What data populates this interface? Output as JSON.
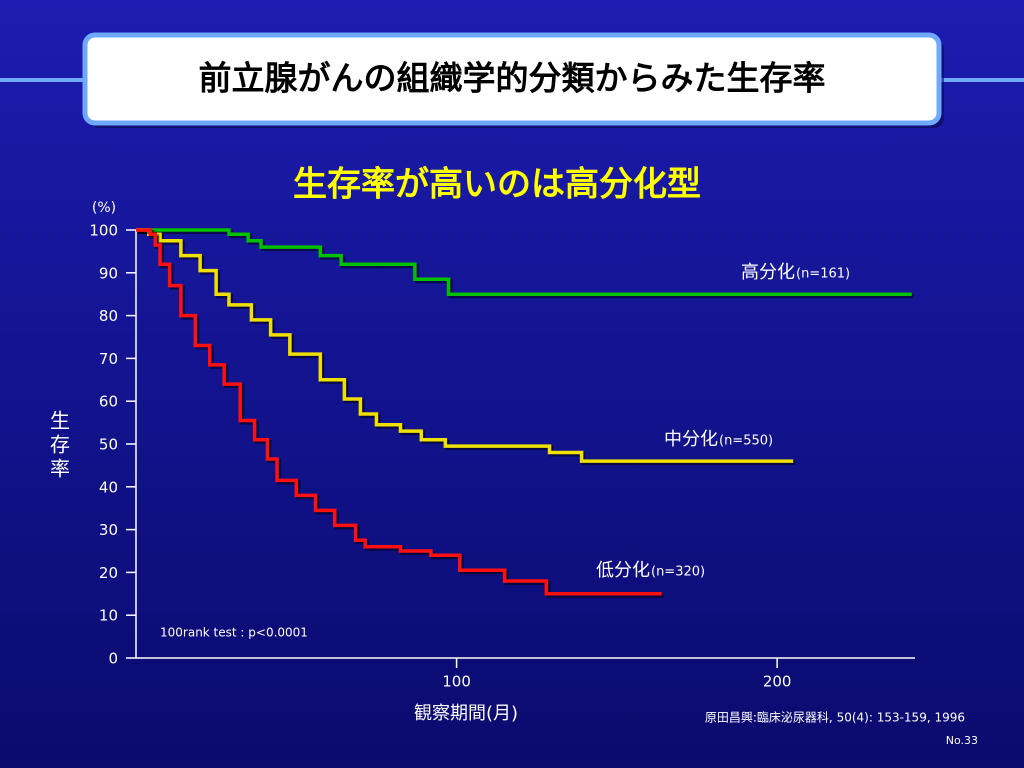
{
  "chart_data": {
    "type": "line",
    "step": "post",
    "title": "前立腺がんの組織学的分類からみた生存率",
    "subtitle": "生存率が高いのは高分化型",
    "y_unit": "(%)",
    "ylabel": "生存率",
    "xlabel": "観察期間(月)",
    "xlim": [
      0,
      243
    ],
    "ylim": [
      0,
      100
    ],
    "xticks": [
      100,
      200
    ],
    "yticks": [
      0,
      10,
      20,
      30,
      40,
      50,
      60,
      70,
      80,
      90,
      100
    ],
    "annotation": "100rank test : p<0.0001",
    "source": "原田昌興:臨床泌尿器科, 50(4): 153-159, 1996",
    "page_number": "No.33",
    "series": [
      {
        "name": "高分化",
        "n_label": "(n=161)",
        "color": "#00c000",
        "x": [
          0,
          29,
          35,
          39,
          57.5,
          64,
          87,
          97.5,
          242
        ],
        "values": [
          100,
          99,
          97.5,
          96,
          94,
          92,
          88.5,
          85,
          85
        ]
      },
      {
        "name": "中分化",
        "n_label": "(n=550)",
        "color": "#f0e000",
        "x": [
          0,
          4,
          7.5,
          14,
          20,
          25,
          29,
          36,
          42,
          48,
          57.5,
          65,
          70,
          75,
          82.5,
          89,
          96.5,
          129,
          139,
          205
        ],
        "values": [
          100,
          99,
          97.5,
          94,
          90.5,
          85,
          82.5,
          79,
          75.5,
          71,
          65,
          60.5,
          57,
          54.5,
          53,
          51,
          49.5,
          48,
          46,
          46
        ]
      },
      {
        "name": "低分化",
        "n_label": "(n=320)",
        "color": "#ff1010",
        "x": [
          0,
          4.5,
          6,
          7.5,
          10.5,
          14,
          18.5,
          23,
          27.5,
          32.5,
          37,
          41,
          44,
          50,
          56,
          62,
          68.5,
          71.5,
          82.5,
          92,
          101,
          115,
          128,
          164
        ],
        "values": [
          100,
          99,
          96.5,
          92,
          87,
          80,
          73,
          68.5,
          64,
          55.5,
          51,
          46.5,
          41.5,
          38,
          34.5,
          31,
          27.5,
          26,
          25,
          24,
          20.5,
          18,
          15,
          15
        ]
      }
    ]
  }
}
